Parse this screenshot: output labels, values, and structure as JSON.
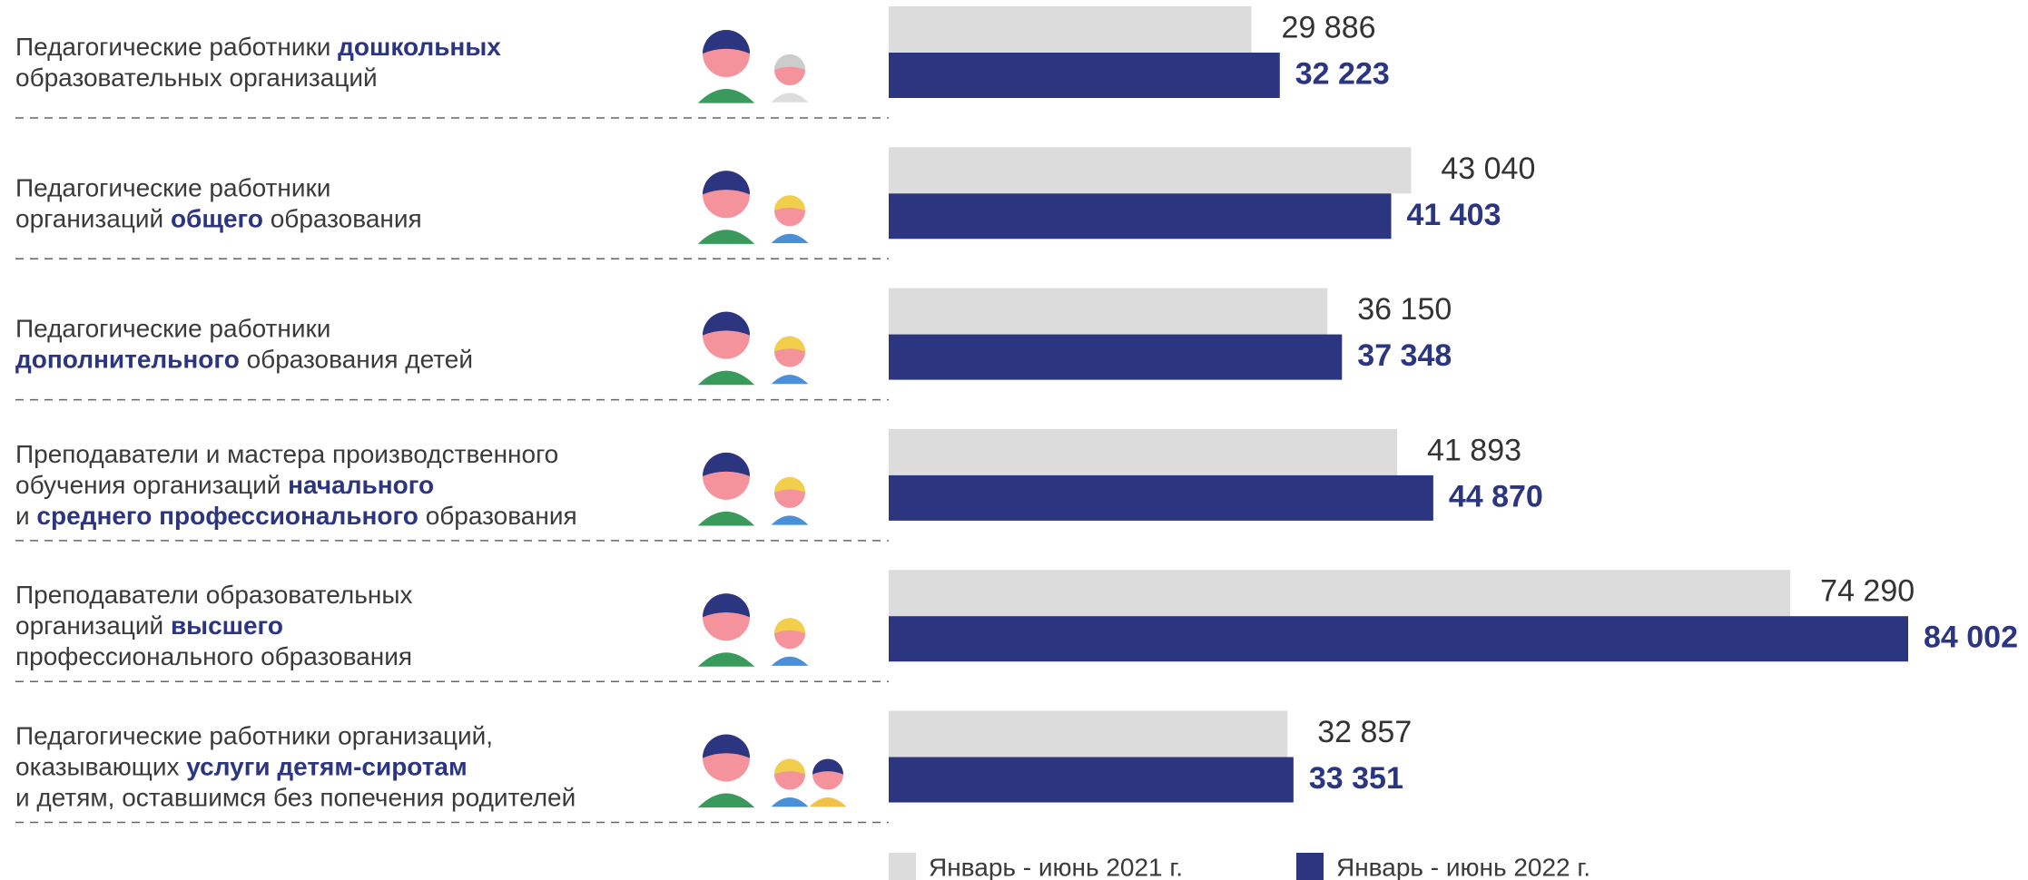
{
  "chart_data": {
    "type": "hbar",
    "categories": [
      [
        [
          "Педагогические работники ",
          {
            "b": "дошкольных"
          }
        ],
        [
          "образовательных организаций"
        ]
      ],
      [
        [
          "Педагогические работники"
        ],
        [
          "организаций ",
          {
            "b": "общего"
          },
          " образования"
        ]
      ],
      [
        [
          "Педагогические работники"
        ],
        [
          {
            "b": "дополнительного"
          },
          " образования детей"
        ]
      ],
      [
        [
          "Преподаватели и мастера производственного"
        ],
        [
          "обучения организаций ",
          {
            "b": "начального"
          }
        ],
        [
          "и ",
          {
            "b": "среднего профессионального"
          },
          " образования"
        ]
      ],
      [
        [
          "Преподаватели образовательных"
        ],
        [
          "организаций ",
          {
            "b": "высшего"
          }
        ],
        [
          "профессионального образования"
        ]
      ],
      [
        [
          "Педагогические работники организаций,"
        ],
        [
          "оказывающих ",
          {
            "b": "услуги детям-сиротам"
          }
        ],
        [
          "и детям, оставшимся без попечения родителей"
        ]
      ]
    ],
    "series": [
      {
        "name": "Январь - июнь 2021 г.",
        "color": "#dcdcdc",
        "values": [
          29886,
          43040,
          36150,
          41893,
          74290,
          32857
        ],
        "value_labels": [
          "29 886",
          "43 040",
          "36 150",
          "41 893",
          "74 290",
          "32 857"
        ]
      },
      {
        "name": "Январь - июнь 2022 г.",
        "color": "#2b3580",
        "values": [
          32223,
          41403,
          37348,
          44870,
          84002,
          33351
        ],
        "value_labels": [
          "32 223",
          "41 403",
          "37 348",
          "44 870",
          "84 002",
          "33 351"
        ]
      }
    ]
  }
}
